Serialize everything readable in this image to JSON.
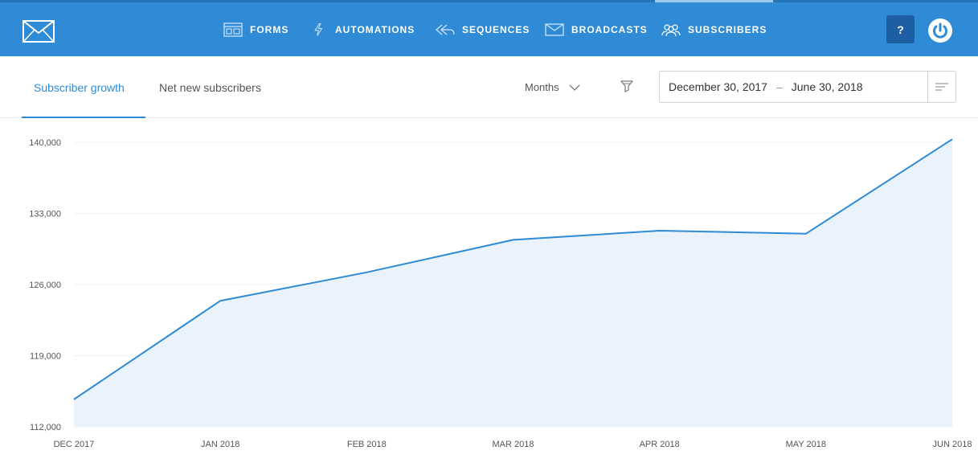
{
  "nav": {
    "items": [
      {
        "label": "FORMS",
        "icon": "forms-icon"
      },
      {
        "label": "AUTOMATIONS",
        "icon": "lightning-icon"
      },
      {
        "label": "SEQUENCES",
        "icon": "sequences-icon"
      },
      {
        "label": "BROADCASTS",
        "icon": "envelope-icon"
      },
      {
        "label": "SUBSCRIBERS",
        "icon": "people-icon",
        "active": true
      }
    ],
    "help_label": "?",
    "colors": {
      "bar": "#2f8bd5",
      "help_bg": "#1e5fa4"
    }
  },
  "toolbar": {
    "tabs": [
      {
        "label": "Subscriber growth",
        "active": true
      },
      {
        "label": "Net new subscribers",
        "active": false
      }
    ],
    "period": "Months",
    "date_start": "December 30, 2017",
    "date_sep": "–",
    "date_end": "June 30, 2018"
  },
  "chart_data": {
    "type": "area",
    "categories": [
      "DEC 2017",
      "JAN 2018",
      "FEB 2018",
      "MAR 2018",
      "APR 2018",
      "MAY 2018",
      "JUN 2018"
    ],
    "values": [
      114700,
      124400,
      127200,
      130400,
      131300,
      131000,
      140300
    ],
    "yticks": [
      "140,000",
      "133,000",
      "126,000",
      "119,000",
      "112,000"
    ],
    "ylim": [
      112000,
      140000
    ],
    "color": "#2f8bd5",
    "fill": "#eaf2fb",
    "grid": true
  }
}
